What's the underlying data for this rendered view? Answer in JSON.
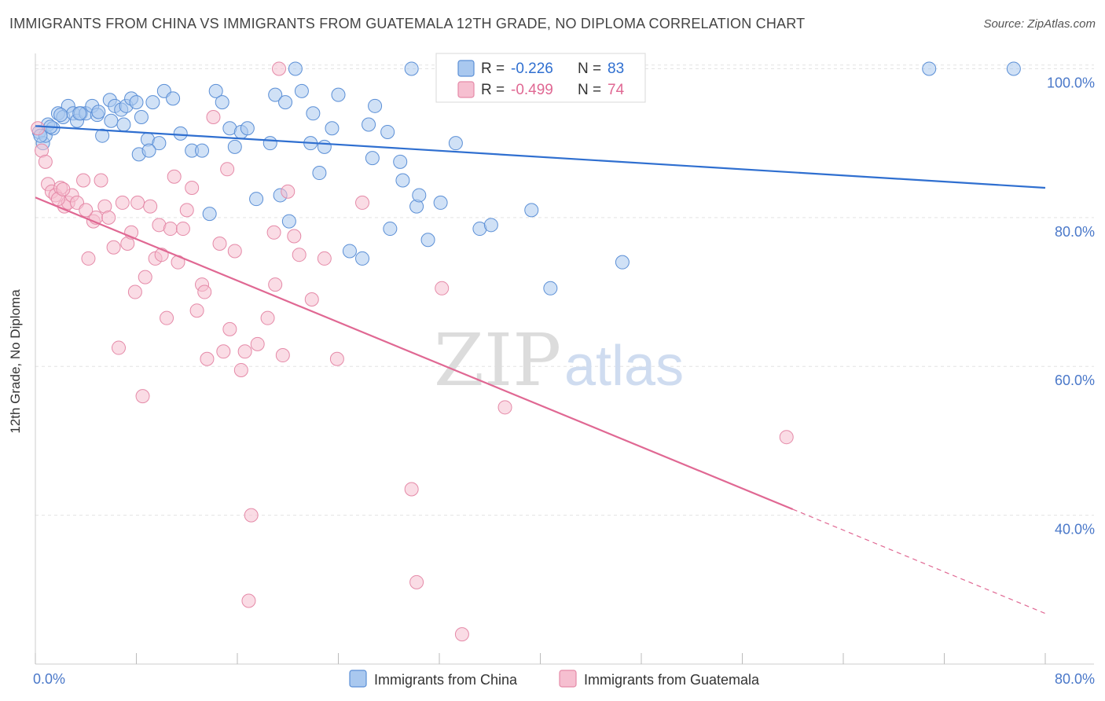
{
  "title": "IMMIGRANTS FROM CHINA VS IMMIGRANTS FROM GUATEMALA 12TH GRADE, NO DIPLOMA CORRELATION CHART",
  "source": "Source: ZipAtlas.com",
  "watermark": {
    "zip": "ZIP",
    "atlas": "atlas"
  },
  "colors": {
    "china_fill": "#a9c8ef",
    "china_stroke": "#5b8fd6",
    "china_line": "#2f6fd0",
    "guatemala_fill": "#f6bfd0",
    "guatemala_stroke": "#e58aa8",
    "guatemala_line": "#e06893",
    "axis_text": "#4a78c9",
    "grid": "#e3e3e3"
  },
  "legend": {
    "china": {
      "r_label": "R =",
      "r_value": "-0.226",
      "n_label": "N =",
      "n_value": "83"
    },
    "guatemala": {
      "r_label": "R =",
      "r_value": "-0.499",
      "n_label": "N =",
      "n_value": "74"
    }
  },
  "chart_data": {
    "type": "scatter",
    "title": "IMMIGRANTS FROM CHINA VS IMMIGRANTS FROM GUATEMALA 12TH GRADE, NO DIPLOMA CORRELATION CHART",
    "xlabel": "",
    "ylabel": "12th Grade, No Diploma",
    "xlim": [
      0,
      80
    ],
    "ylim": [
      20,
      101
    ],
    "x_tick_labels": [
      "0.0%",
      "80.0%"
    ],
    "y_ticks": [
      40,
      60,
      80,
      100
    ],
    "y_tick_labels": [
      "40.0%",
      "60.0%",
      "80.0%",
      "100.0%"
    ],
    "grid": true,
    "legend_position": "top-center",
    "series": [
      {
        "name": "Immigrants from China",
        "trend": {
          "x": [
            0,
            80
          ],
          "y": [
            92.3,
            84.0
          ]
        },
        "points": [
          [
            0.3,
            91.5
          ],
          [
            0.6,
            90.0
          ],
          [
            0.8,
            91.0
          ],
          [
            1.0,
            92.5
          ],
          [
            1.4,
            92.0
          ],
          [
            1.8,
            94.0
          ],
          [
            2.2,
            93.5
          ],
          [
            2.6,
            95.0
          ],
          [
            3.0,
            94.0
          ],
          [
            3.3,
            93.0
          ],
          [
            3.6,
            94.0
          ],
          [
            4.0,
            94.0
          ],
          [
            4.5,
            95.0
          ],
          [
            4.9,
            93.8
          ],
          [
            5.3,
            91.0
          ],
          [
            5.9,
            95.8
          ],
          [
            6.3,
            95.0
          ],
          [
            6.8,
            94.5
          ],
          [
            7.2,
            95.0
          ],
          [
            7.6,
            96.0
          ],
          [
            8.0,
            95.5
          ],
          [
            8.4,
            93.5
          ],
          [
            8.9,
            90.5
          ],
          [
            9.3,
            95.5
          ],
          [
            9.8,
            90.0
          ],
          [
            10.2,
            97.0
          ],
          [
            10.9,
            96.0
          ],
          [
            11.5,
            91.3
          ],
          [
            12.4,
            89.0
          ],
          [
            13.2,
            89.0
          ],
          [
            13.8,
            80.5
          ],
          [
            14.3,
            97.0
          ],
          [
            14.8,
            95.5
          ],
          [
            15.4,
            92.0
          ],
          [
            15.8,
            89.5
          ],
          [
            16.3,
            91.5
          ],
          [
            16.8,
            92.0
          ],
          [
            17.5,
            82.5
          ],
          [
            18.6,
            90.0
          ],
          [
            19.0,
            96.5
          ],
          [
            19.4,
            83.0
          ],
          [
            19.8,
            95.5
          ],
          [
            20.1,
            79.5
          ],
          [
            20.6,
            100.0
          ],
          [
            21.1,
            97.0
          ],
          [
            21.8,
            90.0
          ],
          [
            22.0,
            94.0
          ],
          [
            22.5,
            86.0
          ],
          [
            22.9,
            89.5
          ],
          [
            23.5,
            92.0
          ],
          [
            24.0,
            96.5
          ],
          [
            24.9,
            75.5
          ],
          [
            25.9,
            74.5
          ],
          [
            26.4,
            92.5
          ],
          [
            26.7,
            88.0
          ],
          [
            26.9,
            95.0
          ],
          [
            27.9,
            91.5
          ],
          [
            28.1,
            78.5
          ],
          [
            28.9,
            87.5
          ],
          [
            29.1,
            85.0
          ],
          [
            29.8,
            100.0
          ],
          [
            30.2,
            81.5
          ],
          [
            30.4,
            83.0
          ],
          [
            31.1,
            77.0
          ],
          [
            32.1,
            82.0
          ],
          [
            33.0,
            100.0
          ],
          [
            33.3,
            90.0
          ],
          [
            35.2,
            78.5
          ],
          [
            36.1,
            79.0
          ],
          [
            39.3,
            81.0
          ],
          [
            40.8,
            70.5
          ],
          [
            46.5,
            74.0
          ],
          [
            70.8,
            100.0
          ],
          [
            77.5,
            100.0
          ],
          [
            0.4,
            91.0
          ],
          [
            1.2,
            92.2
          ],
          [
            2.0,
            93.8
          ],
          [
            3.5,
            94.0
          ],
          [
            5.0,
            94.2
          ],
          [
            6.0,
            93.0
          ],
          [
            7.0,
            92.5
          ],
          [
            8.2,
            88.5
          ],
          [
            9.0,
            89.0
          ]
        ]
      },
      {
        "name": "Immigrants from Guatemala",
        "trend": {
          "x": [
            0,
            60
          ],
          "y": [
            82.7,
            40.8
          ]
        },
        "trend_extension": {
          "x": [
            60,
            80
          ],
          "y": [
            40.8,
            26.8
          ]
        },
        "points": [
          [
            0.2,
            92.0
          ],
          [
            0.5,
            89.0
          ],
          [
            0.8,
            87.5
          ],
          [
            1.0,
            84.5
          ],
          [
            1.3,
            83.5
          ],
          [
            1.6,
            83.0
          ],
          [
            2.0,
            84.0
          ],
          [
            2.3,
            81.5
          ],
          [
            2.6,
            82.0
          ],
          [
            2.9,
            83.0
          ],
          [
            3.3,
            82.0
          ],
          [
            3.8,
            85.0
          ],
          [
            4.2,
            74.5
          ],
          [
            4.6,
            79.5
          ],
          [
            4.8,
            80.0
          ],
          [
            5.2,
            85.0
          ],
          [
            5.5,
            81.5
          ],
          [
            5.8,
            80.0
          ],
          [
            6.2,
            76.0
          ],
          [
            6.6,
            62.5
          ],
          [
            6.9,
            82.0
          ],
          [
            7.3,
            76.5
          ],
          [
            7.6,
            78.0
          ],
          [
            7.9,
            70.0
          ],
          [
            8.1,
            82.0
          ],
          [
            8.5,
            56.0
          ],
          [
            8.7,
            72.0
          ],
          [
            9.1,
            81.5
          ],
          [
            9.5,
            74.5
          ],
          [
            9.8,
            79.0
          ],
          [
            10.0,
            75.0
          ],
          [
            10.4,
            66.5
          ],
          [
            10.7,
            78.5
          ],
          [
            11.0,
            85.5
          ],
          [
            11.3,
            74.0
          ],
          [
            11.7,
            78.5
          ],
          [
            12.0,
            81.0
          ],
          [
            12.4,
            84.0
          ],
          [
            12.8,
            67.5
          ],
          [
            13.2,
            71.0
          ],
          [
            13.4,
            70.0
          ],
          [
            13.6,
            61.0
          ],
          [
            14.1,
            93.5
          ],
          [
            14.6,
            76.5
          ],
          [
            14.9,
            62.0
          ],
          [
            15.2,
            86.5
          ],
          [
            15.4,
            65.0
          ],
          [
            15.8,
            75.5
          ],
          [
            16.3,
            59.5
          ],
          [
            16.6,
            62.0
          ],
          [
            16.9,
            28.5
          ],
          [
            17.1,
            40.0
          ],
          [
            17.6,
            63.0
          ],
          [
            18.4,
            66.5
          ],
          [
            18.9,
            78.0
          ],
          [
            19.0,
            71.0
          ],
          [
            19.3,
            100.0
          ],
          [
            19.6,
            61.5
          ],
          [
            20.0,
            83.5
          ],
          [
            20.5,
            77.5
          ],
          [
            20.9,
            75.0
          ],
          [
            21.9,
            69.0
          ],
          [
            22.9,
            74.5
          ],
          [
            23.9,
            61.0
          ],
          [
            25.9,
            82.0
          ],
          [
            29.8,
            43.5
          ],
          [
            30.2,
            31.0
          ],
          [
            32.2,
            70.5
          ],
          [
            33.8,
            24.0
          ],
          [
            37.2,
            54.5
          ],
          [
            59.5,
            50.5
          ],
          [
            1.8,
            82.5
          ],
          [
            2.2,
            83.8
          ],
          [
            4.0,
            81.0
          ]
        ]
      }
    ]
  }
}
